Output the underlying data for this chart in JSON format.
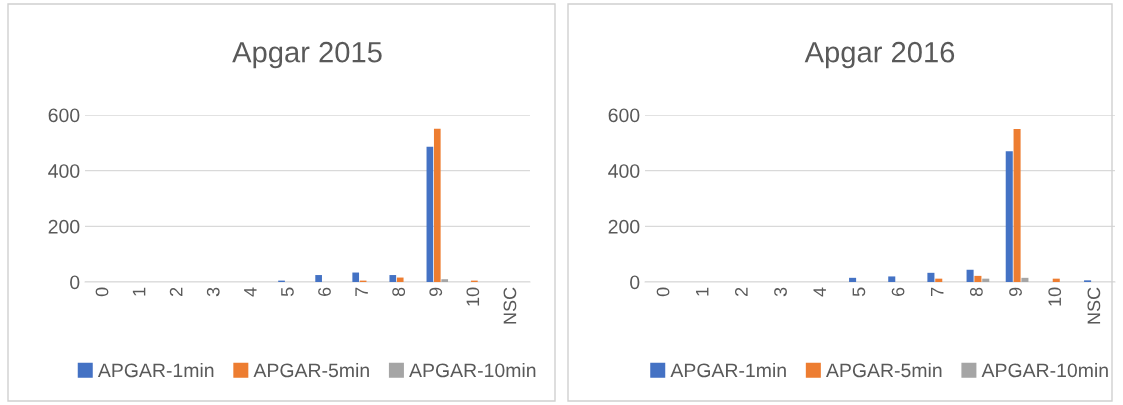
{
  "chart_data": [
    {
      "type": "bar",
      "title": "Apgar 2015",
      "categories": [
        "0",
        "1",
        "2",
        "3",
        "4",
        "5",
        "6",
        "7",
        "8",
        "9",
        "10",
        "NSC"
      ],
      "ylim": [
        0,
        600
      ],
      "yticks": [
        0,
        200,
        400,
        600
      ],
      "grid": "y",
      "legend": "bottom",
      "series": [
        {
          "name": "APGAR-1min",
          "color": "#4472c4",
          "values": [
            0,
            0,
            0,
            0,
            0,
            5,
            25,
            34,
            25,
            486,
            0,
            0
          ]
        },
        {
          "name": "APGAR-5min",
          "color": "#ed7d31",
          "values": [
            0,
            0,
            0,
            0,
            0,
            0,
            0,
            5,
            16,
            551,
            5,
            0
          ]
        },
        {
          "name": "APGAR-10min",
          "color": "#a5a5a5",
          "values": [
            0,
            0,
            0,
            0,
            0,
            0,
            0,
            0,
            0,
            10,
            0,
            0
          ]
        }
      ]
    },
    {
      "type": "bar",
      "title": "Apgar 2016",
      "categories": [
        "0",
        "1",
        "2",
        "3",
        "4",
        "5",
        "6",
        "7",
        "8",
        "9",
        "10",
        "NSC"
      ],
      "ylim": [
        0,
        600
      ],
      "yticks": [
        0,
        200,
        400,
        600
      ],
      "grid": "y",
      "legend": "bottom",
      "series": [
        {
          "name": "APGAR-1min",
          "color": "#4472c4",
          "values": [
            0,
            0,
            0,
            0,
            0,
            15,
            20,
            33,
            44,
            470,
            0,
            6
          ]
        },
        {
          "name": "APGAR-5min",
          "color": "#ed7d31",
          "values": [
            0,
            0,
            0,
            0,
            0,
            0,
            0,
            12,
            22,
            550,
            12,
            0
          ]
        },
        {
          "name": "APGAR-10min",
          "color": "#a5a5a5",
          "values": [
            0,
            0,
            0,
            0,
            0,
            0,
            0,
            0,
            12,
            15,
            0,
            0
          ]
        }
      ]
    }
  ]
}
